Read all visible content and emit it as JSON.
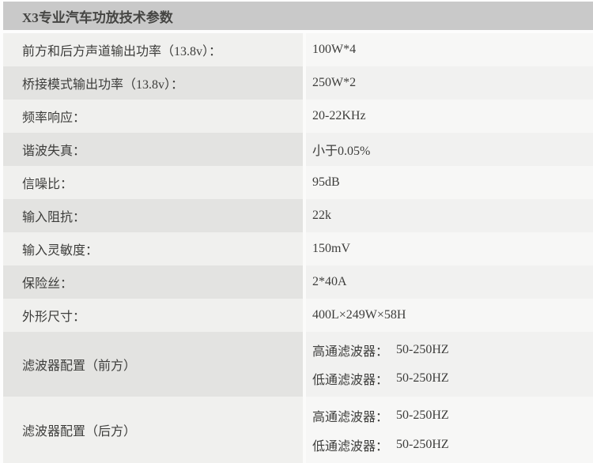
{
  "table": {
    "title": "X3专业汽车功放技术参数",
    "colors": {
      "header_bg": "#c9c9c9",
      "header_text": "#454543",
      "row_light_label_bg": "#f0f0ee",
      "row_light_value_bg": "#f7f7f6",
      "row_dark_label_bg": "#e3e3e1",
      "row_dark_value_bg": "#f1f1f0",
      "body_text": "#3d3d3b",
      "page_bg": "#fdfdfd"
    },
    "rows": [
      {
        "label": "前方和后方声道输出功率（13.8v）：",
        "value": "100W*4"
      },
      {
        "label": "桥接模式输出功率（13.8v）：",
        "value": "250W*2"
      },
      {
        "label": "频率响应：",
        "value": "20-22KHz"
      },
      {
        "label": "谐波失真：",
        "value": "小于0.05%"
      },
      {
        "label": "信噪比：",
        "value": "95dB"
      },
      {
        "label": "输入阻抗：",
        "value": "22k"
      },
      {
        "label": "输入灵敏度：",
        "value": "150mV"
      },
      {
        "label": "保险丝：",
        "value": "2*40A"
      },
      {
        "label": "外形尺寸：",
        "value": "400L×249W×58H"
      },
      {
        "label": "滤波器配置（前方）",
        "lines": [
          {
            "name": "高通滤波器：",
            "range": "50-250HZ"
          },
          {
            "name": "低通滤波器：",
            "range": "50-250HZ"
          }
        ]
      },
      {
        "label": "滤波器配置（后方）",
        "lines": [
          {
            "name": "高通滤波器：",
            "range": "50-250HZ"
          },
          {
            "name": "低通滤波器：",
            "range": "50-250HZ"
          }
        ]
      }
    ]
  }
}
